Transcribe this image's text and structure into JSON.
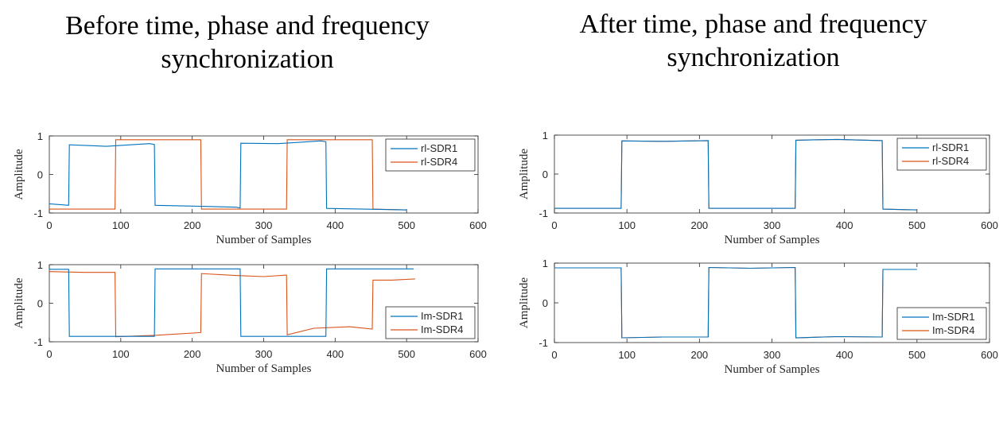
{
  "headings": {
    "left": [
      "Before time, phase and frequency",
      "synchronization"
    ],
    "right": [
      "After time, phase and frequency",
      "synchronization"
    ]
  },
  "colors": {
    "series1": "#0072BD",
    "series2": "#D95319",
    "axis": "#262626"
  },
  "chart_data": [
    {
      "type": "line",
      "panel": "before-real",
      "xlabel": "Number of Samples",
      "ylabel": "Amplitude",
      "xlim": [
        0,
        600
      ],
      "ylim": [
        -1,
        1
      ],
      "xticks": [
        0,
        100,
        200,
        300,
        400,
        500,
        600
      ],
      "yticks": [
        -1,
        0,
        1
      ],
      "legend_position": "top-right",
      "series": [
        {
          "name": "rl-SDR1",
          "color": "#0072BD",
          "x": [
            0,
            27,
            28,
            80,
            140,
            147,
            148,
            200,
            262,
            267,
            268,
            320,
            380,
            387,
            388,
            440,
            500
          ],
          "y": [
            -0.76,
            -0.8,
            0.77,
            0.73,
            0.8,
            0.78,
            -0.8,
            -0.82,
            -0.85,
            -0.87,
            0.81,
            0.8,
            0.87,
            0.85,
            -0.88,
            -0.9,
            -0.92
          ]
        },
        {
          "name": "rl-SDR4",
          "color": "#D95319",
          "x": [
            0,
            92,
            93,
            150,
            212,
            213,
            270,
            332,
            333,
            390,
            452,
            453,
            500
          ],
          "y": [
            -0.9,
            -0.9,
            0.9,
            0.9,
            0.9,
            -0.9,
            -0.9,
            -0.9,
            0.9,
            0.9,
            0.9,
            -0.9,
            -0.92
          ]
        }
      ]
    },
    {
      "type": "line",
      "panel": "before-imag",
      "xlabel": "Number of Samples",
      "ylabel": "Amplitude",
      "xlim": [
        0,
        600
      ],
      "ylim": [
        -1,
        1
      ],
      "xticks": [
        0,
        100,
        200,
        300,
        400,
        500,
        600
      ],
      "yticks": [
        -1,
        0,
        1
      ],
      "legend_position": "bottom-right",
      "series": [
        {
          "name": "Im-SDR1",
          "color": "#0072BD",
          "x": [
            0,
            27,
            28,
            80,
            147,
            148,
            210,
            267,
            268,
            330,
            387,
            388,
            440,
            510
          ],
          "y": [
            0.88,
            0.88,
            -0.86,
            -0.86,
            -0.86,
            0.89,
            0.89,
            0.89,
            -0.86,
            -0.86,
            -0.86,
            0.89,
            0.89,
            0.89
          ]
        },
        {
          "name": "Im-SDR4",
          "color": "#D95319",
          "x": [
            0,
            50,
            92,
            93,
            150,
            212,
            213,
            260,
            300,
            332,
            333,
            370,
            420,
            452,
            453,
            480,
            512
          ],
          "y": [
            0.82,
            0.8,
            0.8,
            -0.87,
            -0.83,
            -0.76,
            0.77,
            0.72,
            0.69,
            0.73,
            -0.82,
            -0.65,
            -0.61,
            -0.67,
            0.6,
            0.6,
            0.63
          ]
        }
      ]
    },
    {
      "type": "line",
      "panel": "after-real",
      "xlabel": "Number of Samples",
      "ylabel": "Amplitude",
      "xlim": [
        0,
        600
      ],
      "ylim": [
        -1,
        1
      ],
      "xticks": [
        0,
        100,
        200,
        300,
        400,
        500,
        600
      ],
      "yticks": [
        -1,
        0,
        1
      ],
      "legend_position": "top-right",
      "series": [
        {
          "name": "rl-SDR1",
          "color": "#0072BD",
          "x": [
            0,
            92,
            93,
            150,
            212,
            213,
            270,
            332,
            333,
            390,
            452,
            453,
            500
          ],
          "y": [
            -0.88,
            -0.88,
            0.85,
            0.84,
            0.86,
            -0.88,
            -0.88,
            -0.88,
            0.87,
            0.89,
            0.86,
            -0.9,
            -0.92
          ]
        },
        {
          "name": "rl-SDR4",
          "color": "#D95319",
          "x": [
            0,
            92,
            93,
            150,
            212,
            213,
            270,
            332,
            333,
            390,
            452,
            453,
            500
          ],
          "y": [
            -0.88,
            -0.88,
            0.85,
            0.84,
            0.86,
            -0.88,
            -0.88,
            -0.88,
            0.87,
            0.89,
            0.86,
            -0.9,
            -0.92
          ]
        }
      ]
    },
    {
      "type": "line",
      "panel": "after-imag",
      "xlabel": "Number of Samples",
      "ylabel": "Amplitude",
      "xlim": [
        0,
        600
      ],
      "ylim": [
        -1,
        1
      ],
      "xticks": [
        0,
        100,
        200,
        300,
        400,
        500,
        600
      ],
      "yticks": [
        -1,
        0,
        1
      ],
      "legend_position": "bottom-right",
      "series": [
        {
          "name": "Im-SDR1",
          "color": "#0072BD",
          "x": [
            0,
            92,
            93,
            150,
            212,
            213,
            270,
            332,
            333,
            390,
            452,
            453,
            500
          ],
          "y": [
            0.88,
            0.88,
            -0.88,
            -0.86,
            -0.86,
            0.89,
            0.87,
            0.89,
            -0.88,
            -0.85,
            -0.86,
            0.84,
            0.84
          ]
        },
        {
          "name": "Im-SDR4",
          "color": "#D95319",
          "x": [
            0,
            92,
            93,
            150,
            212,
            213,
            270,
            332,
            333,
            390,
            452,
            453,
            500
          ],
          "y": [
            0.88,
            0.88,
            -0.88,
            -0.86,
            -0.86,
            0.89,
            0.87,
            0.89,
            -0.88,
            -0.85,
            -0.86,
            0.84,
            0.84
          ]
        }
      ]
    }
  ]
}
